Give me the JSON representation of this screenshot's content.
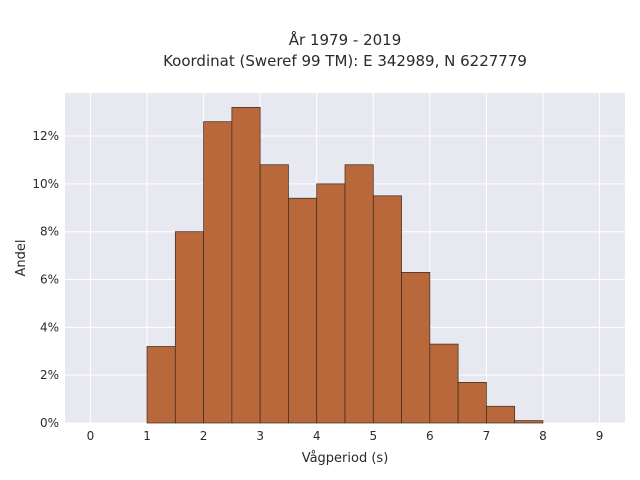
{
  "chart_data": {
    "type": "bar",
    "title_line1": "År 1979 - 2019",
    "title_line2": "Koordinat (Sweref 99 TM): E 342989, N 6227779",
    "xlabel": "Vågperiod (s)",
    "ylabel": "Andel",
    "bin_width": 0.5,
    "bins": [
      {
        "start": 0.0,
        "value": 0.0
      },
      {
        "start": 0.5,
        "value": 0.0
      },
      {
        "start": 1.0,
        "value": 3.2
      },
      {
        "start": 1.5,
        "value": 8.0
      },
      {
        "start": 2.0,
        "value": 12.6
      },
      {
        "start": 2.5,
        "value": 13.2
      },
      {
        "start": 3.0,
        "value": 10.8
      },
      {
        "start": 3.5,
        "value": 9.4
      },
      {
        "start": 4.0,
        "value": 10.0
      },
      {
        "start": 4.5,
        "value": 10.8
      },
      {
        "start": 5.0,
        "value": 9.5
      },
      {
        "start": 5.5,
        "value": 6.3
      },
      {
        "start": 6.0,
        "value": 3.3
      },
      {
        "start": 6.5,
        "value": 1.7
      },
      {
        "start": 7.0,
        "value": 0.7
      },
      {
        "start": 7.5,
        "value": 0.1
      },
      {
        "start": 8.0,
        "value": 0.0
      },
      {
        "start": 8.5,
        "value": 0.0
      }
    ],
    "xlim": [
      -0.45,
      9.45
    ],
    "ylim": [
      0,
      13.8
    ],
    "xticks": [
      0,
      1,
      2,
      3,
      4,
      5,
      6,
      7,
      8,
      9
    ],
    "yticks": [
      0,
      2,
      4,
      6,
      8,
      10,
      12
    ],
    "ytick_suffix": "%",
    "grid": true,
    "colors": {
      "bar_fill": "#b8683a",
      "bar_edge": "#3a2a20",
      "plot_background": "#e8e8f0",
      "grid": "#ffffff"
    }
  }
}
